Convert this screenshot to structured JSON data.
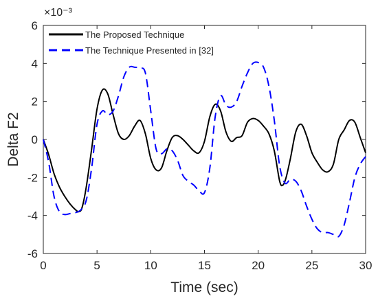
{
  "chart_data": {
    "type": "line",
    "title": "",
    "xlabel": "Time (sec)",
    "ylabel": "Delta F2",
    "y_scale_label": "×10⁻³",
    "xlim": [
      0,
      30
    ],
    "ylim": [
      -6,
      6
    ],
    "xticks": [
      0,
      5,
      10,
      15,
      20,
      25,
      30
    ],
    "yticks": [
      -6,
      -4,
      -2,
      0,
      2,
      4,
      6
    ],
    "grid": false,
    "legend_position": "top-left",
    "series": [
      {
        "name": "The Proposed Technique",
        "color": "#000000",
        "style": "solid",
        "x": [
          0,
          0.5,
          1,
          1.5,
          2,
          2.5,
          3,
          3.3,
          3.6,
          4,
          4.5,
          5,
          5.5,
          6,
          6.5,
          7,
          7.5,
          8,
          8.5,
          9,
          9.5,
          10,
          10.5,
          11,
          11.5,
          12,
          12.5,
          13,
          13.5,
          14,
          14.5,
          15,
          15.5,
          16,
          16.5,
          17,
          17.5,
          18,
          18.5,
          19,
          19.5,
          20,
          20.5,
          21,
          21.5,
          22,
          22.3,
          22.6,
          23,
          23.5,
          24,
          24.5,
          25,
          25.5,
          26,
          26.5,
          27,
          27.5,
          28,
          28.5,
          29,
          29.5,
          30
        ],
        "values": [
          0,
          -0.8,
          -1.8,
          -2.5,
          -3.0,
          -3.4,
          -3.7,
          -3.8,
          -3.6,
          -2.5,
          -0.5,
          1.6,
          2.6,
          2.4,
          1.3,
          0.3,
          0.0,
          0.2,
          0.7,
          1.0,
          0.3,
          -1.0,
          -1.6,
          -1.5,
          -0.6,
          0.1,
          0.2,
          0.0,
          -0.3,
          -0.6,
          -0.7,
          -0.1,
          1.2,
          1.85,
          1.5,
          0.4,
          -0.1,
          0.1,
          0.2,
          0.9,
          1.1,
          1.0,
          0.7,
          0.3,
          -0.6,
          -2.2,
          -2.4,
          -2.0,
          -1.0,
          0.4,
          0.8,
          0.2,
          -0.7,
          -1.2,
          -1.6,
          -1.7,
          -1.3,
          0.0,
          0.5,
          1.0,
          0.9,
          0.1,
          -0.7
        ]
      },
      {
        "name": "The Technique Presented in [32]",
        "color": "#0000ff",
        "style": "dashed",
        "x": [
          0,
          0.5,
          1,
          1.5,
          2,
          2.5,
          3,
          3.5,
          4,
          4.5,
          5,
          5.5,
          6,
          6.5,
          7,
          7.5,
          8,
          8.5,
          9,
          9.5,
          10,
          10.5,
          11,
          11.5,
          12,
          12.5,
          13,
          13.5,
          14,
          14.5,
          15,
          15.5,
          16,
          16.5,
          17,
          17.5,
          18,
          18.5,
          19,
          19.5,
          20,
          20.5,
          21,
          21.5,
          22,
          22.5,
          23,
          23.5,
          24,
          24.5,
          25,
          25.5,
          26,
          26.5,
          27,
          27.5,
          28,
          28.5,
          29,
          29.5,
          30
        ],
        "values": [
          0,
          -1.2,
          -3.0,
          -3.8,
          -3.95,
          -3.9,
          -3.85,
          -3.7,
          -3.2,
          -1.5,
          0.8,
          1.5,
          1.3,
          1.5,
          2.3,
          3.3,
          3.8,
          3.8,
          3.75,
          3.5,
          1.5,
          -0.5,
          -0.75,
          -0.5,
          -0.6,
          -1.1,
          -1.9,
          -2.2,
          -2.4,
          -2.7,
          -2.8,
          -1.5,
          1.2,
          2.3,
          1.8,
          1.7,
          2.0,
          2.8,
          3.5,
          4.0,
          4.05,
          3.8,
          2.8,
          1.0,
          -1.4,
          -2.3,
          -2.1,
          -2.2,
          -2.7,
          -3.5,
          -4.2,
          -4.7,
          -4.9,
          -4.9,
          -5.0,
          -5.1,
          -4.5,
          -3.3,
          -2.0,
          -1.3,
          -0.9
        ]
      }
    ]
  }
}
